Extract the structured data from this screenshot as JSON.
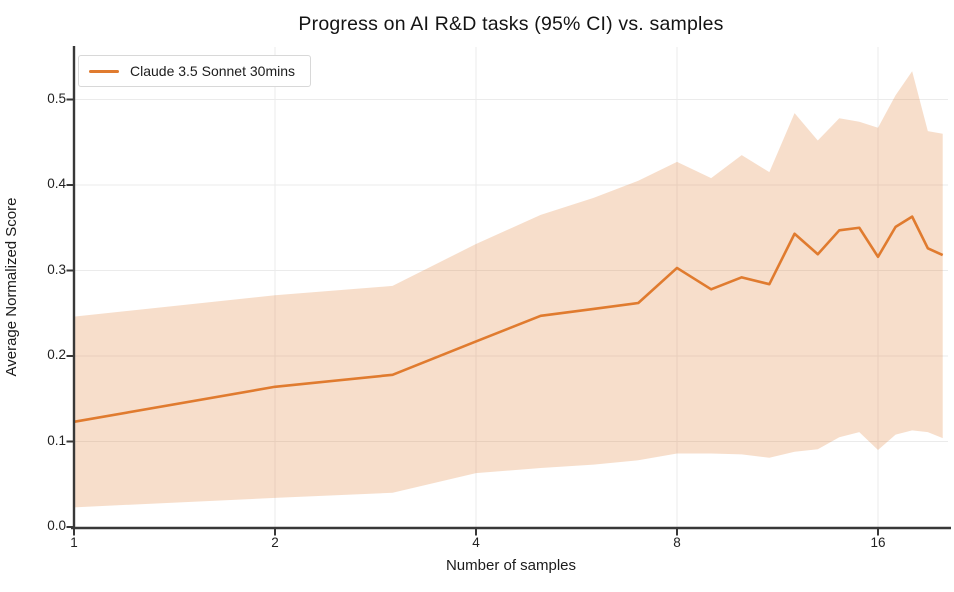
{
  "title": "Progress on AI R&D tasks (95% CI) vs. samples",
  "legend": {
    "label": "Claude 3.5 Sonnet 30mins"
  },
  "colors": {
    "line": "#e07b2f",
    "band": "rgba(224,123,47,0.25)",
    "spine": "#383838",
    "grid": "#ebebeb",
    "text": "#1c1c1c",
    "background": "#ffffff"
  },
  "chart_data": {
    "type": "line",
    "title": "Progress on AI R&D tasks (95% CI) vs. samples",
    "xlabel": "Number of samples",
    "ylabel": "Average Normalized Score",
    "x_scale": "log2",
    "xlim": [
      1,
      20.4
    ],
    "ylim": [
      0,
      0.56
    ],
    "grid": true,
    "legend_position": "upper-left",
    "x": [
      1,
      2,
      3,
      4,
      5,
      6,
      7,
      8,
      9,
      10,
      11,
      12,
      13,
      14,
      15,
      16,
      17,
      18,
      19,
      20
    ],
    "series": [
      {
        "name": "Claude 3.5 Sonnet 30mins",
        "role": "mean",
        "values": [
          0.123,
          0.164,
          0.178,
          0.217,
          0.247,
          0.255,
          0.262,
          0.303,
          0.278,
          0.292,
          0.284,
          0.343,
          0.319,
          0.347,
          0.35,
          0.316,
          0.351,
          0.363,
          0.326,
          0.318
        ]
      },
      {
        "name": "95% CI upper",
        "role": "ci-upper",
        "values": [
          0.246,
          0.271,
          0.282,
          0.331,
          0.365,
          0.385,
          0.405,
          0.427,
          0.408,
          0.435,
          0.415,
          0.484,
          0.452,
          0.478,
          0.474,
          0.467,
          0.505,
          0.533,
          0.463,
          0.46
        ]
      },
      {
        "name": "95% CI lower",
        "role": "ci-lower",
        "values": [
          0.023,
          0.034,
          0.04,
          0.063,
          0.069,
          0.073,
          0.078,
          0.086,
          0.086,
          0.085,
          0.081,
          0.088,
          0.091,
          0.105,
          0.111,
          0.09,
          0.108,
          0.113,
          0.111,
          0.104
        ]
      }
    ],
    "x_ticks": [
      1,
      2,
      4,
      8,
      16
    ],
    "x_tick_labels": [
      "1",
      "2",
      "4",
      "8",
      "16"
    ],
    "y_ticks": [
      0.0,
      0.1,
      0.2,
      0.3,
      0.4,
      0.5
    ],
    "y_tick_labels": [
      "0.0",
      "0.1",
      "0.2",
      "0.3",
      "0.4",
      "0.5"
    ]
  }
}
